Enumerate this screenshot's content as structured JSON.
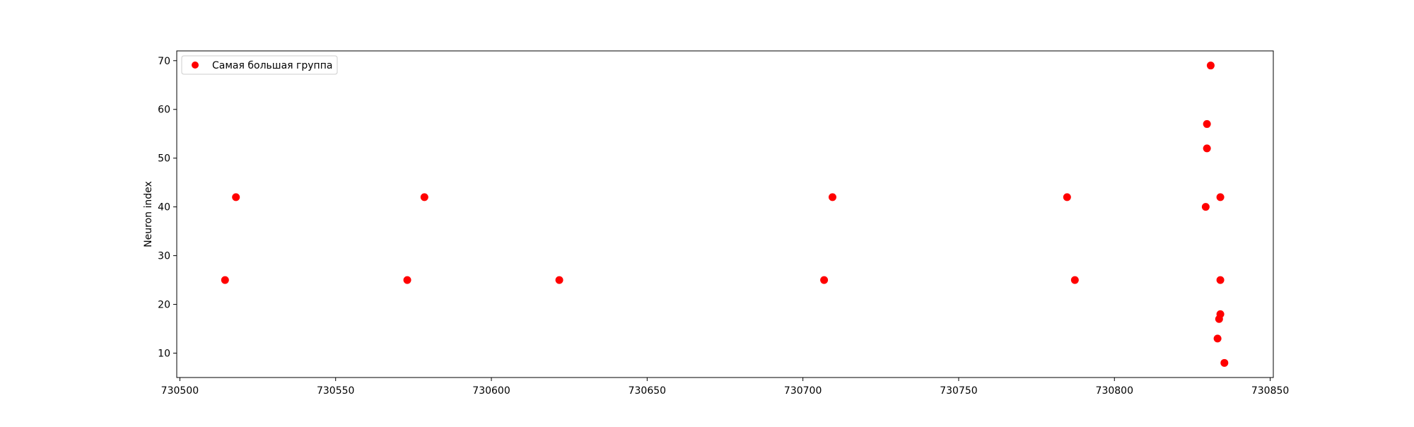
{
  "chart_data": {
    "type": "scatter",
    "title": "",
    "xlabel": "",
    "ylabel": "Neuron index",
    "xlim": [
      730499,
      730851
    ],
    "ylim": [
      5,
      72
    ],
    "xticks": [
      730500,
      730550,
      730600,
      730650,
      730700,
      730750,
      730800,
      730850
    ],
    "yticks": [
      10,
      20,
      30,
      40,
      50,
      60,
      70
    ],
    "grid": false,
    "legend": {
      "position": "top-left"
    },
    "series": [
      {
        "name": "Самая большая группа",
        "color": "#ff0000",
        "marker": "circle",
        "points": [
          {
            "x": 730514.5,
            "y": 25
          },
          {
            "x": 730518.0,
            "y": 42
          },
          {
            "x": 730573.0,
            "y": 25
          },
          {
            "x": 730578.5,
            "y": 42
          },
          {
            "x": 730621.8,
            "y": 25
          },
          {
            "x": 730706.8,
            "y": 25
          },
          {
            "x": 730709.5,
            "y": 42
          },
          {
            "x": 730784.8,
            "y": 42
          },
          {
            "x": 730787.3,
            "y": 25
          },
          {
            "x": 730829.3,
            "y": 40
          },
          {
            "x": 730829.7,
            "y": 52
          },
          {
            "x": 730829.7,
            "y": 57
          },
          {
            "x": 730830.9,
            "y": 69
          },
          {
            "x": 730833.1,
            "y": 13
          },
          {
            "x": 730833.6,
            "y": 17
          },
          {
            "x": 730834.0,
            "y": 18
          },
          {
            "x": 730834.0,
            "y": 25
          },
          {
            "x": 730834.0,
            "y": 42
          },
          {
            "x": 730835.3,
            "y": 8
          }
        ]
      }
    ]
  }
}
